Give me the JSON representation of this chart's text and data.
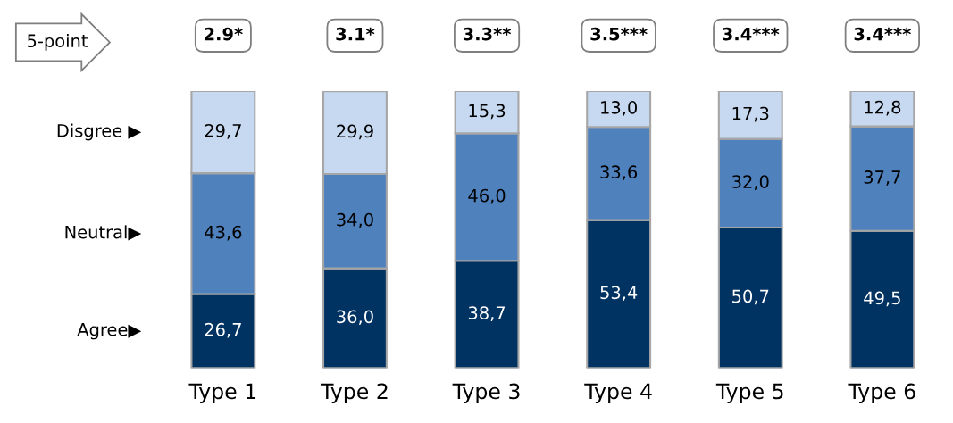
{
  "chart_data": {
    "type": "bar",
    "stacked": true,
    "categories": [
      "Type 1",
      "Type 2",
      "Type 3",
      "Type 4",
      "Type 5",
      "Type 6"
    ],
    "series": [
      {
        "name": "Agree▶",
        "color": "#003262",
        "values": [
          26.7,
          36.0,
          38.7,
          53.4,
          50.7,
          49.5
        ],
        "value_labels": [
          "26,7",
          "36,0",
          "38,7",
          "53,4",
          "50,7",
          "49,5"
        ]
      },
      {
        "name": "Neutral▶",
        "color": "#4f81bd",
        "values": [
          43.6,
          34.0,
          46.0,
          33.6,
          32.0,
          37.7
        ],
        "value_labels": [
          "43,6",
          "34,0",
          "46,0",
          "33,6",
          "32,0",
          "37,7"
        ]
      },
      {
        "name": "Disgree ▶",
        "color": "#c6d9f1",
        "values": [
          29.7,
          29.9,
          15.3,
          13.0,
          17.3,
          12.8
        ],
        "value_labels": [
          "29,7",
          "29,9",
          "15,3",
          "13,0",
          "17,3",
          "12,8"
        ]
      }
    ],
    "annotations": [
      "5-point",
      "2.9*",
      "3.1*",
      "3.3**",
      "3.5***",
      "3.4***",
      "3.4***"
    ],
    "legend": false,
    "grid": false
  }
}
